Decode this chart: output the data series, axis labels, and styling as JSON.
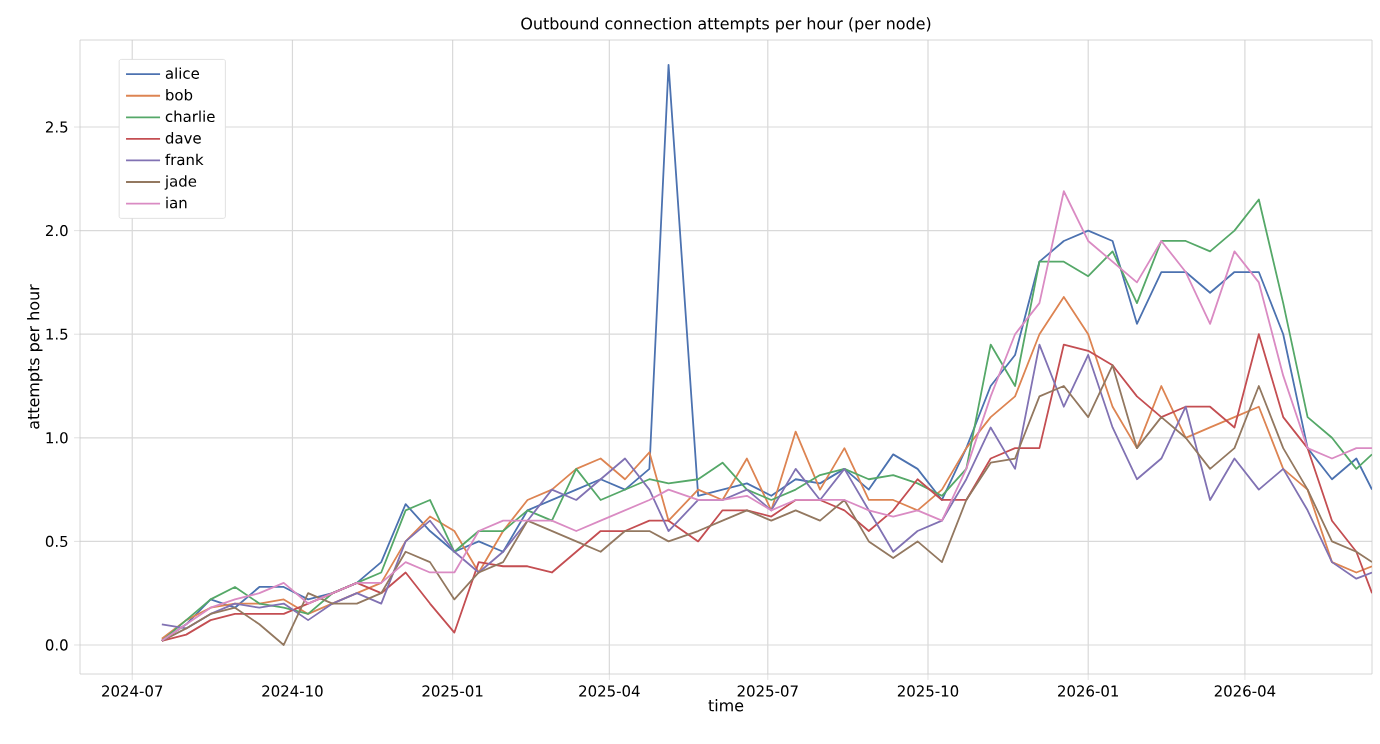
{
  "chart_data": {
    "type": "line",
    "title": "Outbound connection attempts per hour (per node)",
    "xlabel": "time",
    "ylabel": "attempts per hour",
    "x": [
      "2024-07-18",
      "2024-08-01",
      "2024-08-15",
      "2024-08-29",
      "2024-09-12",
      "2024-09-26",
      "2024-10-10",
      "2024-10-24",
      "2024-11-07",
      "2024-11-21",
      "2024-12-05",
      "2024-12-19",
      "2025-01-02",
      "2025-01-16",
      "2025-01-30",
      "2025-02-13",
      "2025-02-27",
      "2025-03-13",
      "2025-03-27",
      "2025-04-10",
      "2025-04-24",
      "2025-05-05",
      "2025-05-22",
      "2025-06-05",
      "2025-06-19",
      "2025-07-03",
      "2025-07-17",
      "2025-07-31",
      "2025-08-14",
      "2025-08-28",
      "2025-09-11",
      "2025-09-25",
      "2025-10-09",
      "2025-10-23",
      "2025-11-06",
      "2025-11-20",
      "2025-12-04",
      "2025-12-18",
      "2026-01-01",
      "2026-01-15",
      "2026-01-29",
      "2026-02-12",
      "2026-02-26",
      "2026-03-12",
      "2026-03-26",
      "2026-04-09",
      "2026-04-23",
      "2026-05-07",
      "2026-05-21",
      "2026-06-04",
      "2026-06-13"
    ],
    "series": [
      {
        "name": "alice",
        "color": "#4c72b0",
        "values": [
          0.02,
          0.1,
          0.22,
          0.18,
          0.28,
          0.28,
          0.22,
          0.25,
          0.3,
          0.4,
          0.68,
          0.55,
          0.45,
          0.5,
          0.45,
          0.65,
          0.7,
          0.75,
          0.8,
          0.75,
          0.85,
          2.8,
          0.72,
          0.75,
          0.78,
          0.72,
          0.8,
          0.78,
          0.85,
          0.75,
          0.92,
          0.85,
          0.7,
          0.95,
          1.25,
          1.4,
          1.85,
          1.95,
          2.0,
          1.95,
          1.55,
          1.8,
          1.8,
          1.7,
          1.8,
          1.8,
          1.5,
          0.95,
          0.8,
          0.9,
          0.75
        ]
      },
      {
        "name": "bob",
        "color": "#dd8452",
        "values": [
          0.03,
          0.12,
          0.18,
          0.2,
          0.2,
          0.22,
          0.15,
          0.2,
          0.25,
          0.3,
          0.5,
          0.62,
          0.55,
          0.35,
          0.55,
          0.7,
          0.75,
          0.85,
          0.9,
          0.8,
          0.93,
          0.6,
          0.75,
          0.7,
          0.9,
          0.65,
          1.03,
          0.75,
          0.95,
          0.7,
          0.7,
          0.65,
          0.75,
          0.95,
          1.1,
          1.2,
          1.5,
          1.68,
          1.5,
          1.15,
          0.95,
          1.25,
          1.0,
          1.05,
          1.1,
          1.15,
          0.85,
          0.75,
          0.4,
          0.35,
          0.38
        ]
      },
      {
        "name": "charlie",
        "color": "#55a868",
        "values": [
          0.02,
          0.12,
          0.22,
          0.28,
          0.2,
          0.18,
          0.15,
          0.25,
          0.3,
          0.35,
          0.65,
          0.7,
          0.45,
          0.55,
          0.55,
          0.65,
          0.6,
          0.85,
          0.7,
          0.75,
          0.8,
          0.78,
          0.8,
          0.88,
          0.75,
          0.7,
          0.75,
          0.82,
          0.85,
          0.8,
          0.82,
          0.78,
          0.72,
          0.85,
          1.45,
          1.25,
          1.85,
          1.85,
          1.78,
          1.9,
          1.65,
          1.95,
          1.95,
          1.9,
          2.0,
          2.15,
          1.65,
          1.1,
          1.0,
          0.85,
          0.92
        ]
      },
      {
        "name": "dave",
        "color": "#c44e52",
        "values": [
          0.02,
          0.05,
          0.12,
          0.15,
          0.15,
          0.15,
          0.2,
          0.25,
          0.3,
          0.25,
          0.35,
          0.2,
          0.06,
          0.4,
          0.38,
          0.38,
          0.35,
          0.45,
          0.55,
          0.55,
          0.6,
          0.6,
          0.5,
          0.65,
          0.65,
          0.62,
          0.7,
          0.7,
          0.65,
          0.55,
          0.65,
          0.8,
          0.7,
          0.7,
          0.9,
          0.95,
          0.95,
          1.45,
          1.42,
          1.35,
          1.2,
          1.1,
          1.15,
          1.15,
          1.05,
          1.5,
          1.1,
          0.95,
          0.6,
          0.45,
          0.25
        ]
      },
      {
        "name": "frank",
        "color": "#8172b3",
        "values": [
          0.1,
          0.08,
          0.15,
          0.2,
          0.18,
          0.2,
          0.12,
          0.2,
          0.25,
          0.2,
          0.5,
          0.6,
          0.45,
          0.35,
          0.45,
          0.6,
          0.75,
          0.7,
          0.8,
          0.9,
          0.75,
          0.55,
          0.7,
          0.7,
          0.75,
          0.65,
          0.85,
          0.7,
          0.85,
          0.65,
          0.45,
          0.55,
          0.6,
          0.8,
          1.05,
          0.85,
          1.45,
          1.15,
          1.4,
          1.05,
          0.8,
          0.9,
          1.15,
          0.7,
          0.9,
          0.75,
          0.85,
          0.65,
          0.4,
          0.32,
          0.35
        ]
      },
      {
        "name": "jade",
        "color": "#937860",
        "values": [
          0.02,
          0.08,
          0.15,
          0.18,
          0.1,
          0.0,
          0.25,
          0.2,
          0.2,
          0.25,
          0.45,
          0.4,
          0.22,
          0.35,
          0.4,
          0.6,
          0.55,
          0.5,
          0.45,
          0.55,
          0.55,
          0.5,
          0.55,
          0.6,
          0.65,
          0.6,
          0.65,
          0.6,
          0.7,
          0.5,
          0.42,
          0.5,
          0.4,
          0.7,
          0.88,
          0.9,
          1.2,
          1.25,
          1.1,
          1.35,
          0.95,
          1.1,
          1.0,
          0.85,
          0.95,
          1.25,
          0.95,
          0.75,
          0.5,
          0.45,
          0.4
        ]
      },
      {
        "name": "ian",
        "color": "#da8bc3",
        "values": [
          0.02,
          0.1,
          0.18,
          0.22,
          0.25,
          0.3,
          0.2,
          0.25,
          0.3,
          0.3,
          0.4,
          0.35,
          0.35,
          0.55,
          0.6,
          0.6,
          0.6,
          0.55,
          0.6,
          0.65,
          0.7,
          0.75,
          0.7,
          0.7,
          0.72,
          0.65,
          0.7,
          0.7,
          0.7,
          0.65,
          0.62,
          0.65,
          0.6,
          0.85,
          1.2,
          1.5,
          1.65,
          2.19,
          1.95,
          1.85,
          1.75,
          1.95,
          1.8,
          1.55,
          1.9,
          1.75,
          1.3,
          0.95,
          0.9,
          0.95,
          0.95
        ]
      }
    ],
    "xlim": [
      "2024-06-01",
      "2026-06-13"
    ],
    "xticks": [
      "2024-07",
      "2024-10",
      "2025-01",
      "2025-04",
      "2025-07",
      "2025-10",
      "2026-01",
      "2026-04"
    ],
    "ylim": [
      -0.14,
      2.92
    ],
    "yticks": [
      {
        "value": 0,
        "label": "0.0"
      },
      {
        "value": 0.5,
        "label": "0.5"
      },
      {
        "value": 1,
        "label": "1.0"
      },
      {
        "value": 1.5,
        "label": "1.5"
      },
      {
        "value": 2,
        "label": "2.0"
      },
      {
        "value": 2.5,
        "label": "2.5"
      }
    ],
    "grid": true,
    "legend": "top left"
  }
}
